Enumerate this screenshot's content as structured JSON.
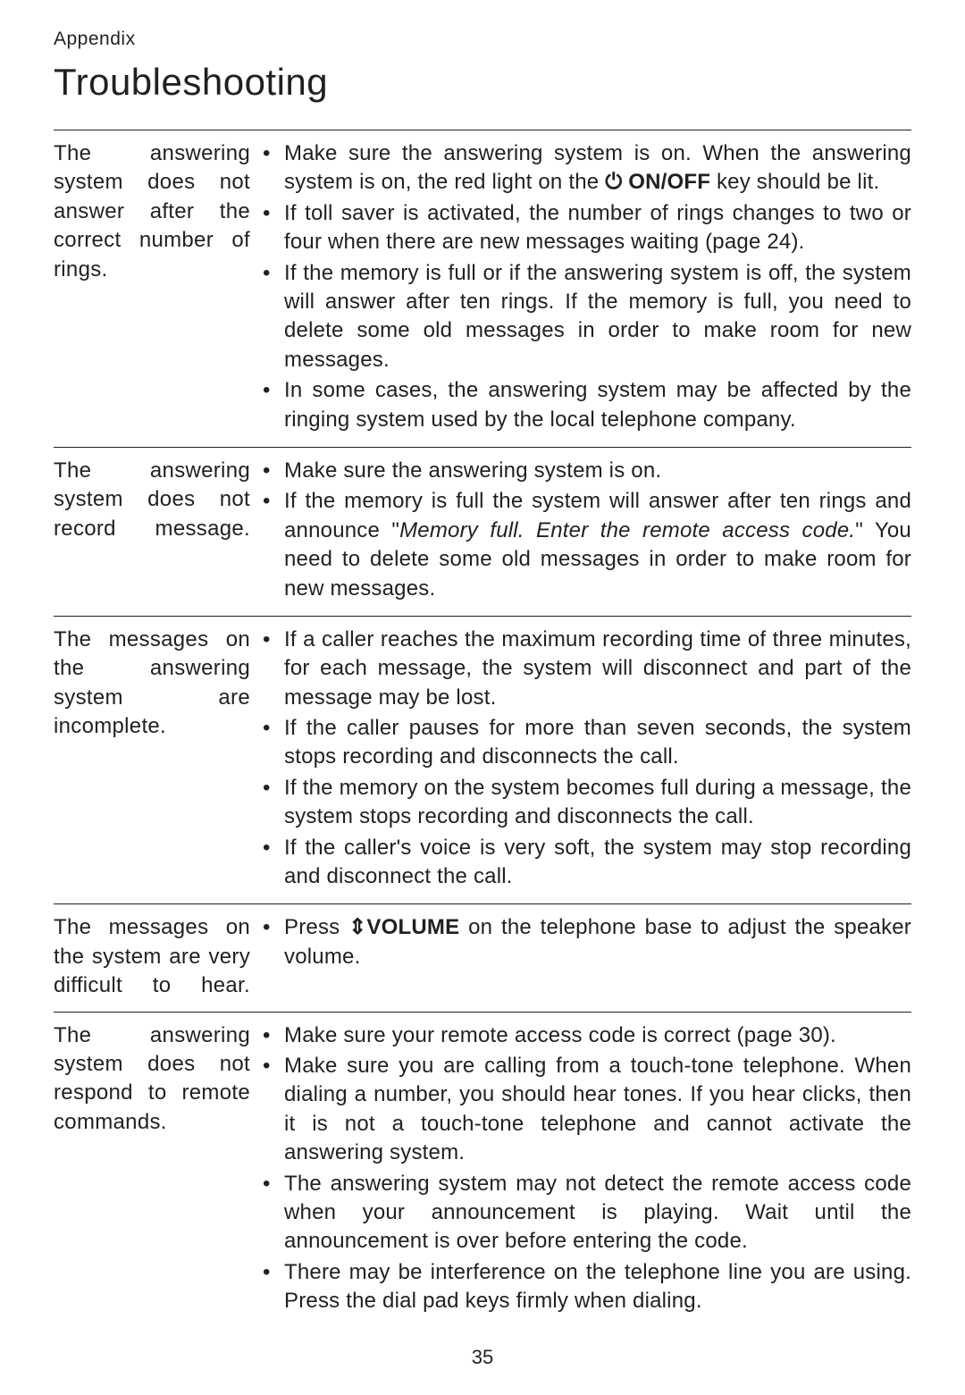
{
  "header": {
    "appendix": "Appendix",
    "title": "Troubleshooting"
  },
  "sections": [
    {
      "left": "The answering system does not answer after the correct number of rings.",
      "bullets": [
        {
          "pre": "Make sure the answering system is on. When the answering system is on, the red light on the ",
          "key": "⏻ ON/OFF",
          "post": " key should be lit."
        },
        {
          "text": "If toll saver is activated, the number of rings changes to two or four when there are new messages waiting (page 24)."
        },
        {
          "text": "If the memory is full or if the answering system is off, the system will answer after ten rings. If the memory is full, you need to delete some old messages in order to make room for new messages."
        },
        {
          "text": "In some cases, the answering system may be affected by the ringing system used by the local telephone company."
        }
      ]
    },
    {
      "left": "The answering system does not record message.",
      "bullets": [
        {
          "text": "Make sure the answering system is on."
        },
        {
          "pre": "If the memory is full the system will answer after ten rings and announce \"",
          "italic": "Memory full. Enter the remote access code.",
          "post": "\" You need to delete some old messages in order to make room for new messages."
        }
      ]
    },
    {
      "left": "The messages on the answering system are incomplete.",
      "bullets": [
        {
          "text": "If a caller reaches the maximum recording time of three minutes, for each message, the system will disconnect and part of the message may be lost."
        },
        {
          "text": "If the caller pauses for more than seven seconds, the system stops recording and disconnects the call."
        },
        {
          "text": "If the memory on the system becomes full during a message, the system stops recording and disconnects the call."
        },
        {
          "text": "If the caller's voice is very soft, the system may stop recording and disconnect the call."
        }
      ]
    },
    {
      "left": "The messages on the system are very difficult to hear.",
      "bullets": [
        {
          "pre": "Press ",
          "key": "⇕VOLUME",
          "post": " on the telephone base to adjust the speaker volume."
        }
      ]
    },
    {
      "left": "The answering system does not respond to remote commands.",
      "bullets": [
        {
          "text": "Make sure your remote access code is correct (page 30)."
        },
        {
          "text": "Make sure you are calling from a touch-tone telephone. When dialing a number, you should hear tones. If you hear clicks, then it is not a touch-tone telephone and cannot activate the answering system."
        },
        {
          "text": "The answering system may not detect the remote access code when your announcement is playing. Wait until the announcement is over before entering the code."
        },
        {
          "text": "There may be interference on the telephone line you are using. Press the dial pad keys firmly when dialing."
        }
      ]
    }
  ],
  "pageNumber": "35"
}
